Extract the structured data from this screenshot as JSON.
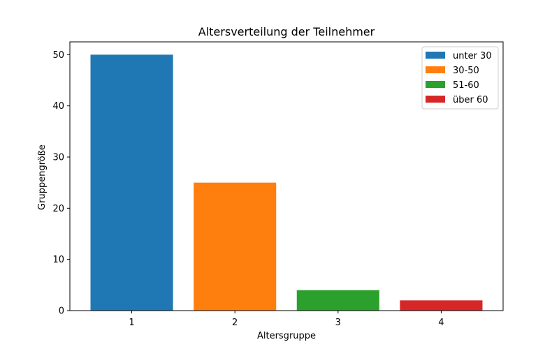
{
  "chart_data": {
    "type": "bar",
    "title": "Altersverteilung der Teilnehmer",
    "xlabel": "Altersgruppe",
    "ylabel": "Gruppengröße",
    "categories": [
      "1",
      "2",
      "3",
      "4"
    ],
    "values": [
      50,
      25,
      4,
      2
    ],
    "series_names": [
      "unter 30",
      "30-50",
      "51-60",
      "über 60"
    ],
    "colors": [
      "#1f77b4",
      "#ff7f0e",
      "#2ca02c",
      "#d62728"
    ],
    "ylim": [
      0,
      52.5
    ],
    "yticks": [
      0,
      10,
      20,
      30,
      40,
      50
    ],
    "grid": false,
    "legend_position": "top-right"
  }
}
